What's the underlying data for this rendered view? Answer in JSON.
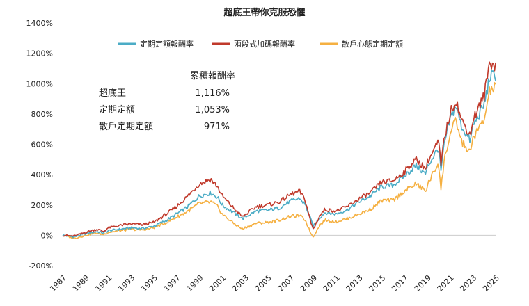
{
  "chart_data": {
    "type": "line",
    "title": "超底王帶你克服恐懼",
    "xlabel": "",
    "ylabel": "",
    "ylim": [
      -200,
      1400
    ],
    "xlim": [
      1987,
      2025
    ],
    "y_ticks": [
      "-200%",
      "0%",
      "200%",
      "400%",
      "600%",
      "800%",
      "1000%",
      "1200%",
      "1400%"
    ],
    "y_tick_values": [
      -200,
      0,
      200,
      400,
      600,
      800,
      1000,
      1200,
      1400
    ],
    "x_ticks": [
      "1987",
      "1989",
      "1991",
      "1993",
      "1995",
      "1997",
      "1999",
      "2001",
      "2003",
      "2005",
      "2007",
      "2009",
      "2011",
      "2013",
      "2015",
      "2017",
      "2019",
      "2021",
      "2023",
      "2025"
    ],
    "grid": false,
    "legend_position": "top-center",
    "series": [
      {
        "name": "定期定額報酬率",
        "color": "#4bacc6",
        "x": [
          1987,
          1988,
          1989,
          1990,
          1990.6,
          1991,
          1992,
          1993,
          1994,
          1995,
          1996,
          1997,
          1998,
          1999,
          2000,
          2000.6,
          2001,
          2002,
          2002.8,
          2003,
          2004,
          2005,
          2006,
          2007,
          2007.8,
          2008.3,
          2008.8,
          2009,
          2009.5,
          2010,
          2011,
          2012,
          2013,
          2014,
          2015,
          2016,
          2017,
          2018,
          2018.9,
          2019,
          2020,
          2020.2,
          2020.5,
          2021,
          2021.5,
          2022,
          2022.8,
          2023,
          2024,
          2024.5,
          2025
        ],
        "values": [
          0,
          -10,
          10,
          25,
          15,
          30,
          40,
          50,
          45,
          60,
          95,
          140,
          190,
          260,
          280,
          250,
          200,
          150,
          110,
          120,
          160,
          165,
          180,
          225,
          245,
          200,
          100,
          60,
          110,
          150,
          140,
          170,
          220,
          260,
          320,
          330,
          390,
          460,
          400,
          450,
          580,
          420,
          600,
          760,
          860,
          720,
          620,
          720,
          860,
          1050,
          1053
        ]
      },
      {
        "name": "兩段式加碼報酬率",
        "color": "#c0392b",
        "x": [
          1987,
          1988,
          1989,
          1990,
          1990.6,
          1991,
          1992,
          1993,
          1994,
          1995,
          1996,
          1997,
          1998,
          1999,
          2000,
          2000.6,
          2001,
          2002,
          2002.8,
          2003,
          2004,
          2005,
          2006,
          2007,
          2007.8,
          2008.3,
          2008.8,
          2009,
          2009.5,
          2010,
          2011,
          2012,
          2013,
          2014,
          2015,
          2016,
          2017,
          2018,
          2018.9,
          2019,
          2020,
          2020.2,
          2020.5,
          2021,
          2021.5,
          2022,
          2022.8,
          2023,
          2024,
          2024.5,
          2025
        ],
        "values": [
          0,
          -5,
          20,
          40,
          25,
          50,
          65,
          75,
          70,
          85,
          135,
          190,
          260,
          340,
          370,
          320,
          260,
          180,
          120,
          135,
          190,
          200,
          220,
          270,
          290,
          230,
          80,
          40,
          120,
          170,
          160,
          190,
          240,
          280,
          350,
          360,
          420,
          500,
          440,
          480,
          620,
          460,
          640,
          800,
          900,
          760,
          660,
          760,
          920,
          1150,
          1116
        ]
      },
      {
        "name": "散戶心態定期定額",
        "color": "#f5b041",
        "x": [
          1987,
          1988,
          1989,
          1990,
          1990.6,
          1991,
          1992,
          1993,
          1994,
          1995,
          1996,
          1997,
          1998,
          1999,
          2000,
          2000.6,
          2001,
          2002,
          2002.8,
          2003,
          2004,
          2005,
          2006,
          2007,
          2007.8,
          2008.3,
          2008.8,
          2009,
          2009.5,
          2010,
          2011,
          2012,
          2013,
          2014,
          2015,
          2016,
          2017,
          2018,
          2018.9,
          2019,
          2020,
          2020.2,
          2020.5,
          2021,
          2021.5,
          2022,
          2022.8,
          2023,
          2024,
          2024.5,
          2025
        ],
        "values": [
          0,
          -20,
          0,
          15,
          5,
          20,
          30,
          40,
          35,
          50,
          80,
          120,
          160,
          210,
          220,
          190,
          140,
          80,
          40,
          50,
          80,
          85,
          100,
          125,
          130,
          100,
          10,
          -10,
          60,
          100,
          90,
          110,
          140,
          170,
          230,
          230,
          290,
          340,
          290,
          330,
          480,
          300,
          500,
          660,
          760,
          620,
          540,
          640,
          760,
          960,
          971
        ]
      }
    ]
  },
  "annotation": {
    "header": "累積報酬率",
    "rows": [
      {
        "label": "超底王",
        "value": "1,116%"
      },
      {
        "label": "定期定額",
        "value": "1,053%"
      },
      {
        "label": "散戶定期定額",
        "value": "971%"
      }
    ]
  }
}
